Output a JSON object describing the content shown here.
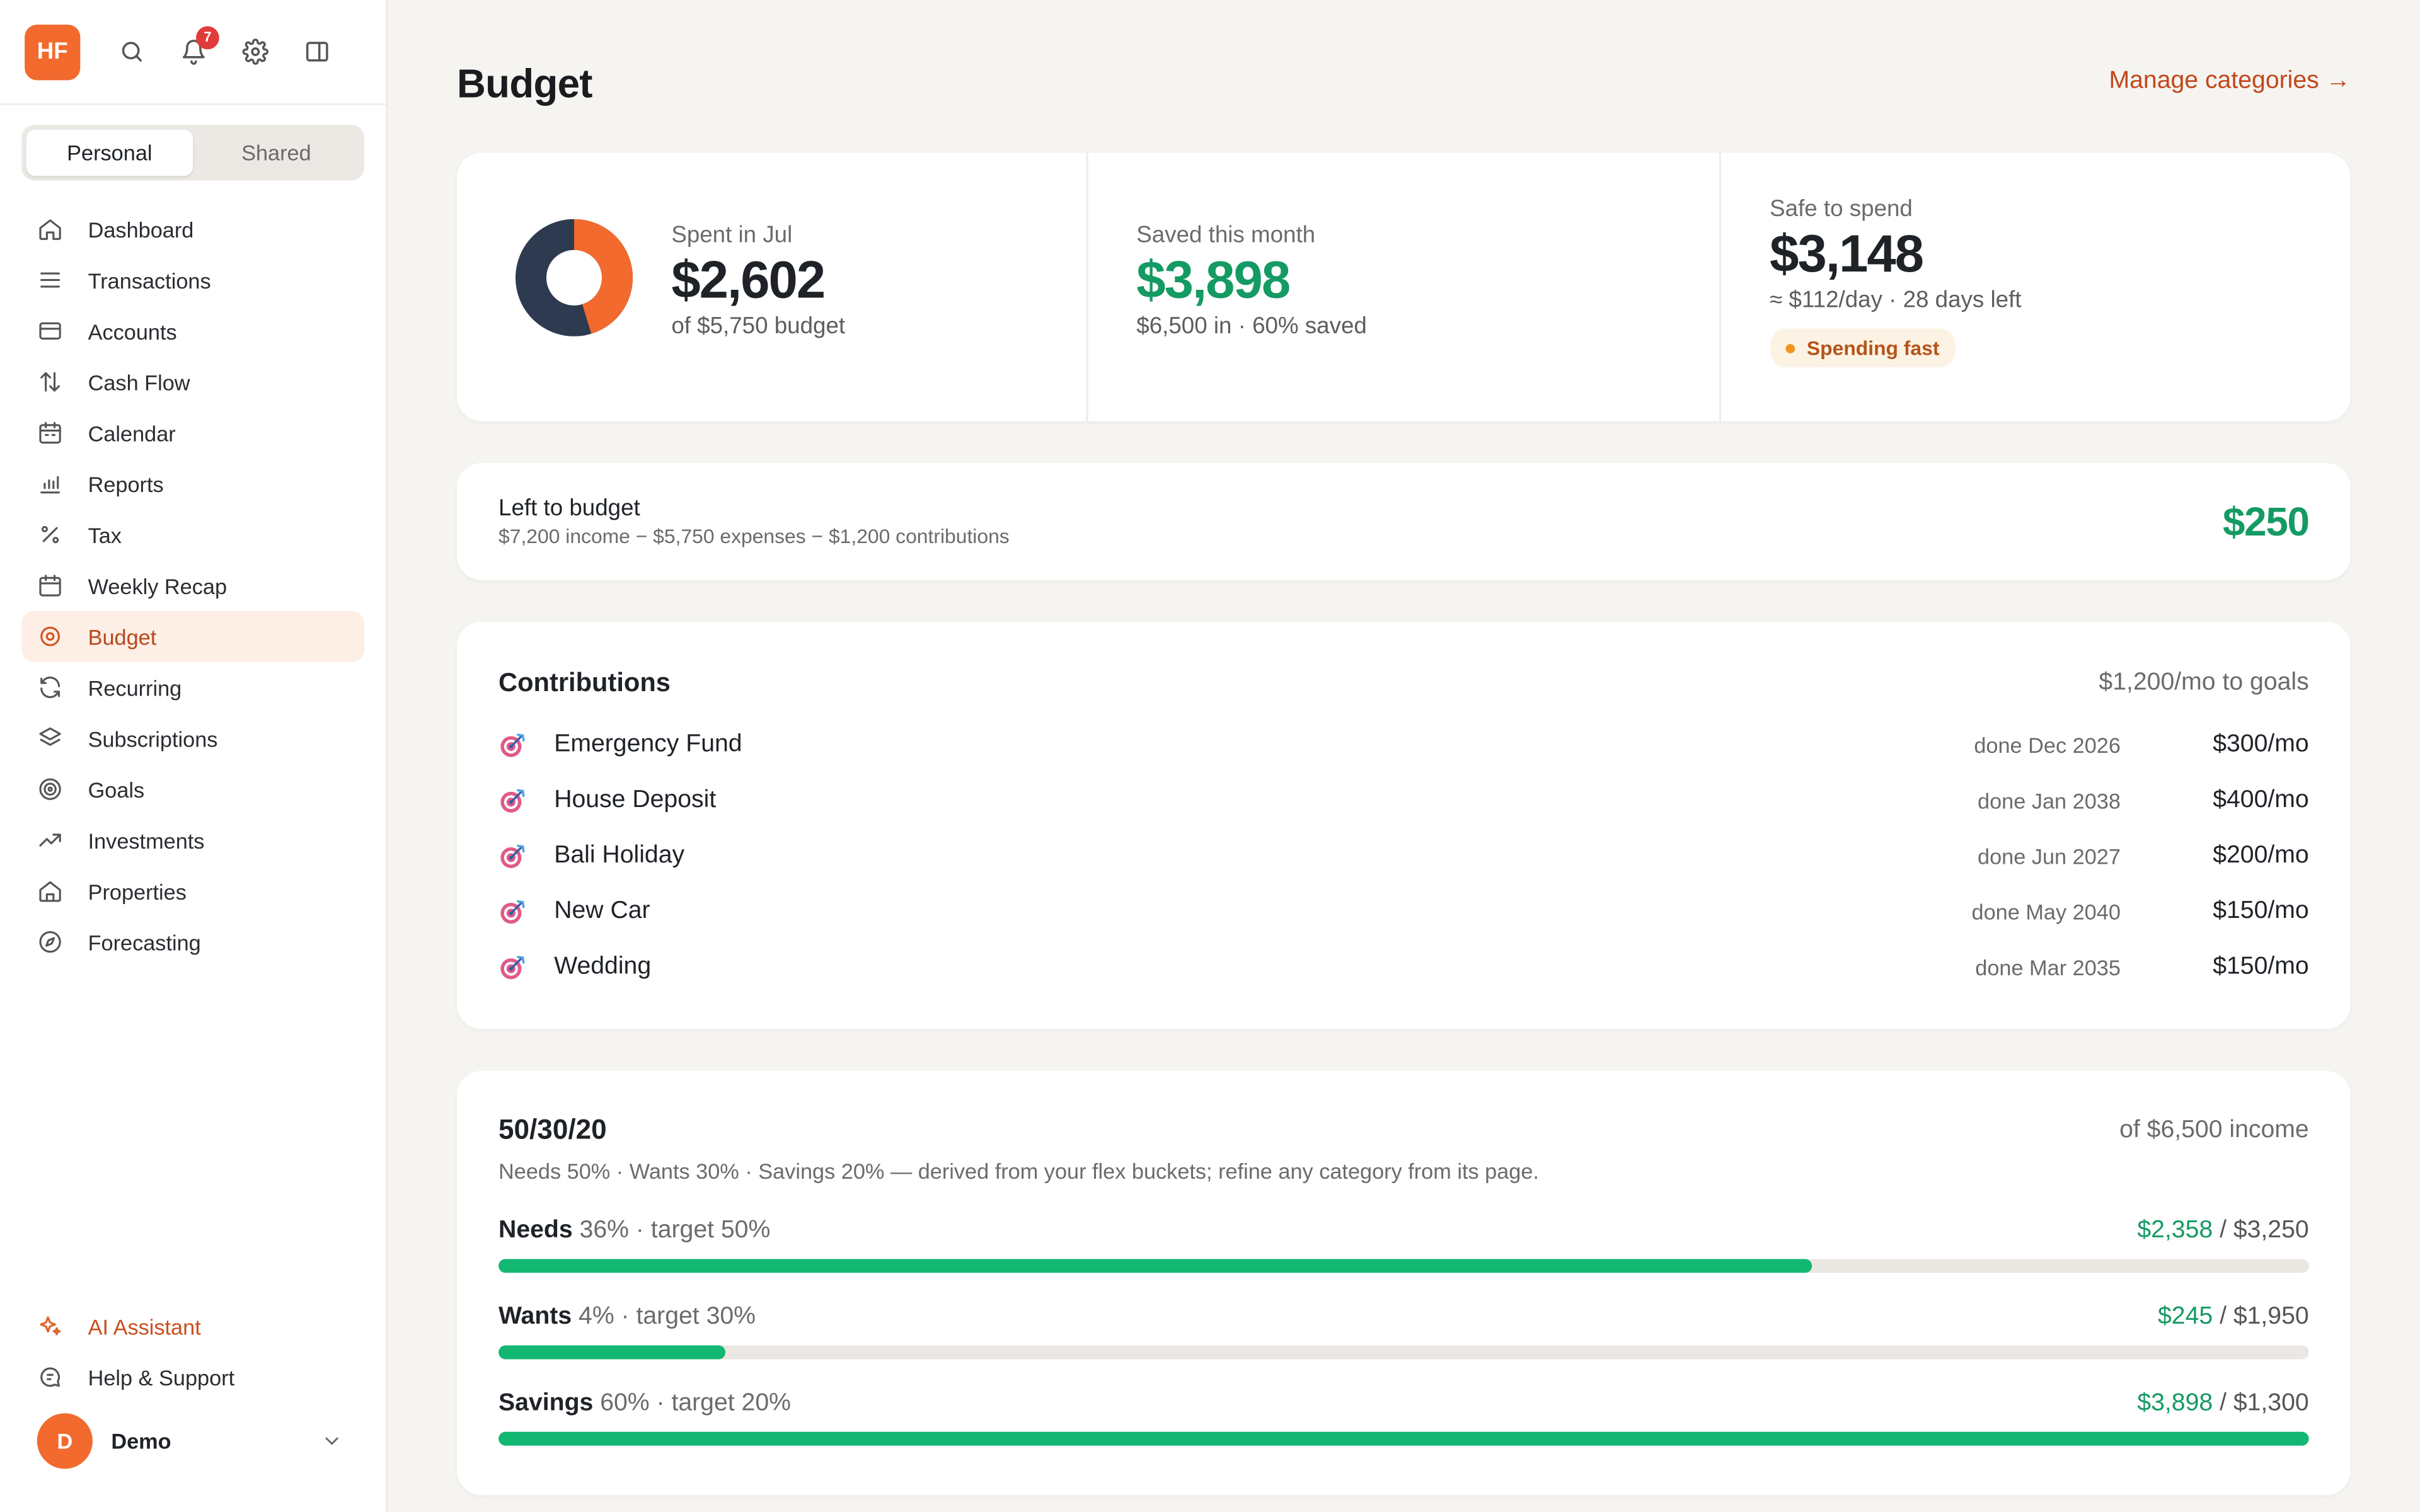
{
  "sidebar": {
    "logo": "HF",
    "notif_count": "7",
    "segments": [
      "Personal",
      "Shared"
    ],
    "nav": [
      {
        "label": "Dashboard",
        "icon": "home-icon"
      },
      {
        "label": "Transactions",
        "icon": "list-icon"
      },
      {
        "label": "Accounts",
        "icon": "card-icon"
      },
      {
        "label": "Cash Flow",
        "icon": "arrows-updown-icon"
      },
      {
        "label": "Calendar",
        "icon": "calendar-icon"
      },
      {
        "label": "Reports",
        "icon": "bar-chart-icon"
      },
      {
        "label": "Tax",
        "icon": "percent-icon"
      },
      {
        "label": "Weekly Recap",
        "icon": "calendar-week-icon"
      },
      {
        "label": "Budget",
        "icon": "target-icon"
      },
      {
        "label": "Recurring",
        "icon": "refresh-icon"
      },
      {
        "label": "Subscriptions",
        "icon": "layers-icon"
      },
      {
        "label": "Goals",
        "icon": "goal-icon"
      },
      {
        "label": "Investments",
        "icon": "trend-up-icon"
      },
      {
        "label": "Properties",
        "icon": "house-icon"
      },
      {
        "label": "Forecasting",
        "icon": "compass-icon"
      }
    ],
    "ai_label": "AI Assistant",
    "help_label": "Help & Support",
    "user_initial": "D",
    "user_name": "Demo"
  },
  "header": {
    "title": "Budget",
    "manage_link": "Manage categories →"
  },
  "summary": {
    "spent_label": "Spent in Jul",
    "spent_value": "$2,602",
    "spent_sub": "of $5,750 budget",
    "spent_fraction": 0.4525,
    "saved_label": "Saved this month",
    "saved_value": "$3,898",
    "saved_sub": "$6,500 in · 60% saved",
    "safe_label": "Safe to spend",
    "safe_value": "$3,148",
    "safe_sub": "≈ $112/day · 28 days left",
    "safe_pill": "Spending fast"
  },
  "left_to_budget": {
    "title": "Left to budget",
    "sub": "$7,200 income − $5,750 expenses − $1,200 contributions",
    "value": "$250"
  },
  "contributions": {
    "title": "Contributions",
    "total": "$1,200/mo to goals",
    "items": [
      {
        "name": "Emergency Fund",
        "date": "done Dec 2026",
        "amount": "$300/mo"
      },
      {
        "name": "House Deposit",
        "date": "done Jan 2038",
        "amount": "$400/mo"
      },
      {
        "name": "Bali Holiday",
        "date": "done Jun 2027",
        "amount": "$200/mo"
      },
      {
        "name": "New Car",
        "date": "done May 2040",
        "amount": "$150/mo"
      },
      {
        "name": "Wedding",
        "date": "done Mar 2035",
        "amount": "$150/mo"
      }
    ]
  },
  "rule": {
    "title": "50/30/20",
    "income": "of $6,500 income",
    "desc": "Needs 50% · Wants 30% · Savings 20% — derived from your flex buckets; refine any category from its page.",
    "buckets": [
      {
        "name": "Needs",
        "meta": "36% · target 50%",
        "spent": "$2,358",
        "total": " / $3,250",
        "progress": 0.7255
      },
      {
        "name": "Wants",
        "meta": "4% · target 30%",
        "spent": "$245",
        "total": " / $1,950",
        "progress": 0.1256
      },
      {
        "name": "Savings",
        "meta": "60% · target 20%",
        "spent": "$3,898",
        "total": " / $1,300",
        "progress": 1.0
      }
    ]
  },
  "colors": {
    "accent": "#f26a2e",
    "green": "#149a63",
    "donut_spent": "#f26a2e",
    "donut_rest": "#2e3a4f"
  }
}
